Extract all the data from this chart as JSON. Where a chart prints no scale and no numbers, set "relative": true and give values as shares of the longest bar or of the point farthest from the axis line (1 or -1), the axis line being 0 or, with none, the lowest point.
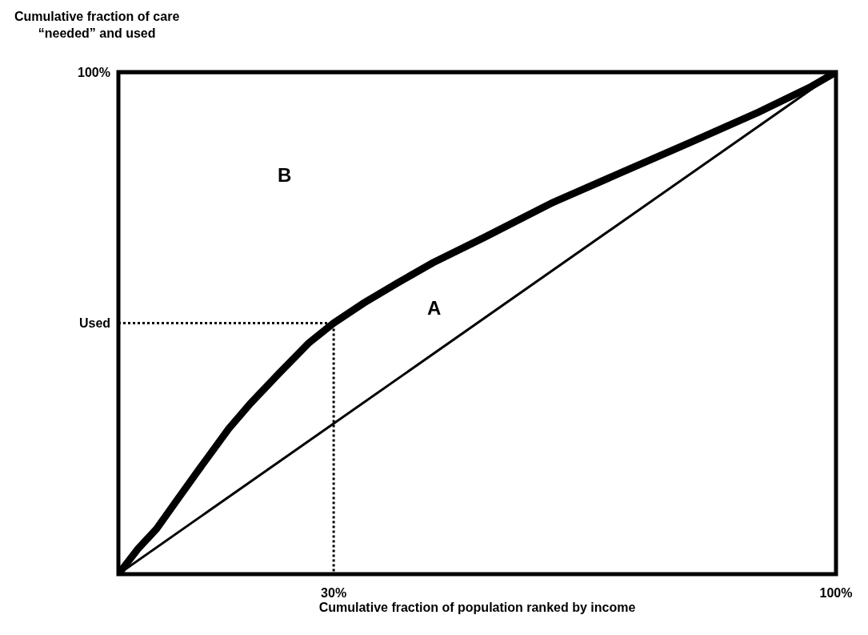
{
  "chart_data": {
    "type": "line",
    "xlabel": "Cumulative fraction of population ranked by income",
    "ylabel": "Cumulative fraction of care\n“needed” and used",
    "relative": true,
    "xlim": [
      0,
      100
    ],
    "xticks": [
      {
        "value": 30,
        "label": "30%"
      },
      {
        "value": 100,
        "label": "100%"
      }
    ],
    "series": [
      {
        "color": "#000000",
        "line_style": "solid",
        "x": [
          0,
          100
        ],
        "values": [
          0,
          1
        ]
      },
      {
        "color": "#000000",
        "line_style": "solid",
        "x": [
          0,
          2.7,
          5.3,
          8.3,
          11.3,
          15.4,
          18.4,
          22.4,
          26.5,
          30,
          34.2,
          38.9,
          43.8,
          50.9,
          60.5,
          70.1,
          79.7,
          89.2,
          96.4,
          100
        ],
        "values": [
          0,
          0.05,
          0.09,
          0.15,
          0.21,
          0.29,
          0.34,
          0.4,
          0.46,
          0.5,
          0.54,
          0.58,
          0.62,
          0.67,
          0.74,
          0.8,
          0.86,
          0.92,
          0.97,
          1
        ]
      },
      {
        "color": "#000000",
        "line_style": "dotted",
        "x": [
          0,
          30,
          30
        ],
        "values": [
          0.5,
          0.5,
          0
        ]
      }
    ],
    "ref_lines": [
      {
        "axis": "y",
        "value": 1,
        "label": "100%",
        "color": "#000000"
      }
    ],
    "annotations": [
      "A",
      "B",
      {
        "text": "Used",
        "x": 0,
        "y": 0.5
      }
    ]
  }
}
